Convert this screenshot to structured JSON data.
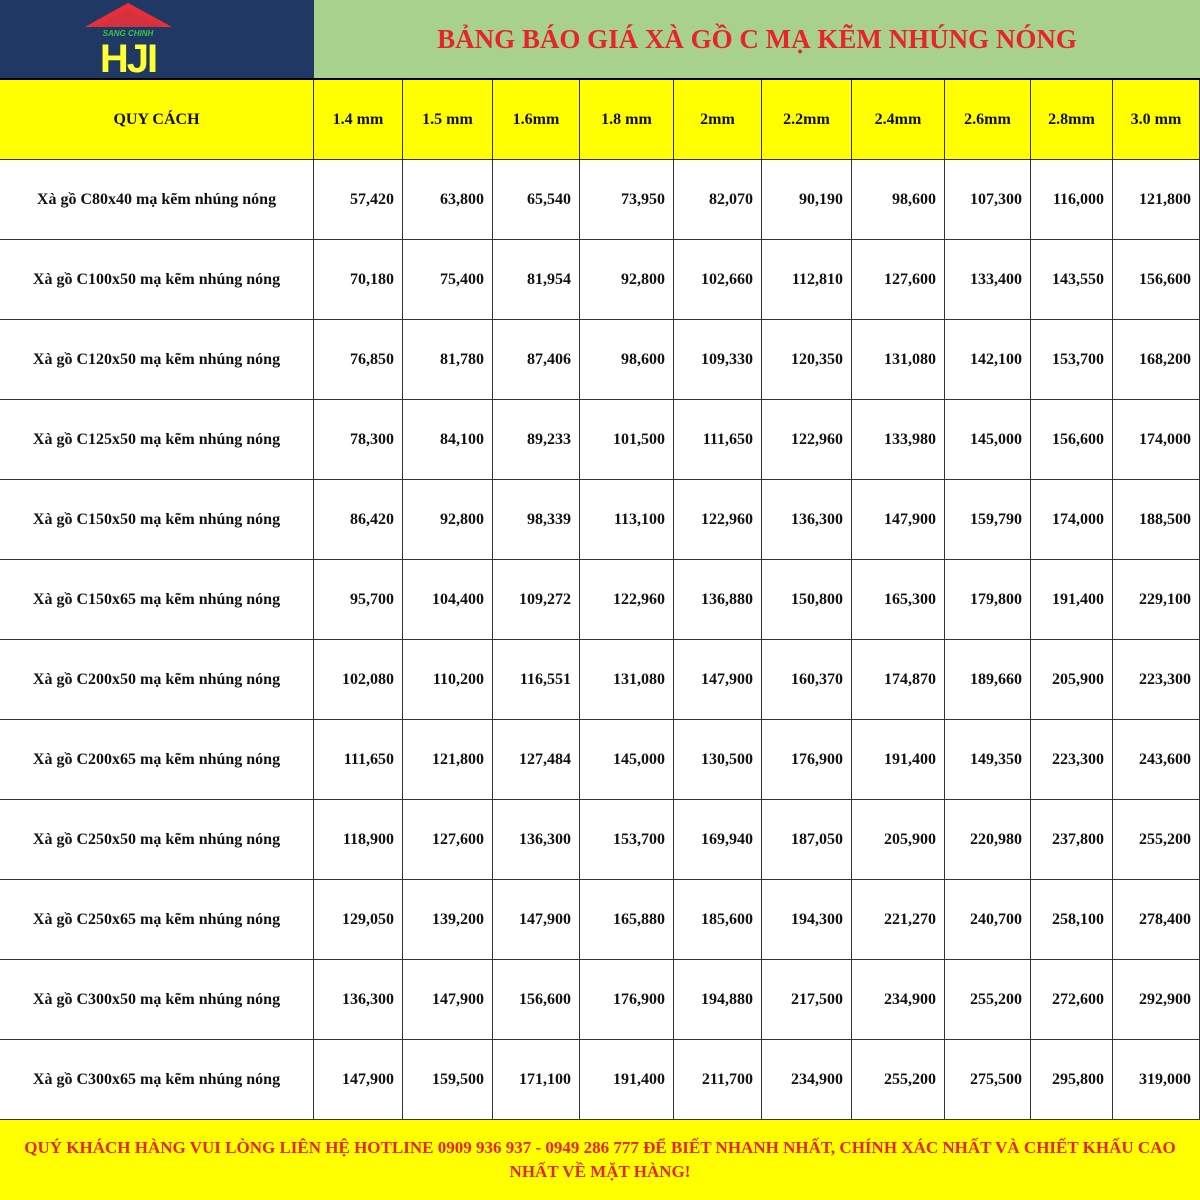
{
  "logo": {
    "text": "SANG CHINH",
    "mark": "HJI",
    "colors": {
      "roof": "#e8303a",
      "letters": "#ffff33",
      "tagline": "#3cc24a",
      "bg": "#1f3864"
    }
  },
  "title": "BẢNG BÁO GIÁ XÀ GỒ C MẠ KẼM NHÚNG NÓNG",
  "table": {
    "headers": [
      "QUY CÁCH",
      "1.4 mm",
      "1.5 mm",
      "1.6mm",
      "1.8 mm",
      "2mm",
      "2.2mm",
      "2.4mm",
      "2.6mm",
      "2.8mm",
      "3.0 mm"
    ],
    "rows": [
      {
        "name": "Xà gồ C80x40 mạ kẽm nhúng nóng",
        "prices": [
          "57,420",
          "63,800",
          "65,540",
          "73,950",
          "82,070",
          "90,190",
          "98,600",
          "107,300",
          "116,000",
          "121,800"
        ]
      },
      {
        "name": "Xà gồ C100x50 mạ kẽm nhúng nóng",
        "prices": [
          "70,180",
          "75,400",
          "81,954",
          "92,800",
          "102,660",
          "112,810",
          "127,600",
          "133,400",
          "143,550",
          "156,600"
        ]
      },
      {
        "name": "Xà gồ C120x50 mạ kẽm nhúng nóng",
        "prices": [
          "76,850",
          "81,780",
          "87,406",
          "98,600",
          "109,330",
          "120,350",
          "131,080",
          "142,100",
          "153,700",
          "168,200"
        ]
      },
      {
        "name": "Xà gồ C125x50 mạ kẽm nhúng nóng",
        "prices": [
          "78,300",
          "84,100",
          "89,233",
          "101,500",
          "111,650",
          "122,960",
          "133,980",
          "145,000",
          "156,600",
          "174,000"
        ]
      },
      {
        "name": "Xà gồ C150x50 mạ kẽm nhúng nóng",
        "prices": [
          "86,420",
          "92,800",
          "98,339",
          "113,100",
          "122,960",
          "136,300",
          "147,900",
          "159,790",
          "174,000",
          "188,500"
        ]
      },
      {
        "name": "Xà gồ C150x65 mạ kẽm nhúng nóng",
        "prices": [
          "95,700",
          "104,400",
          "109,272",
          "122,960",
          "136,880",
          "150,800",
          "165,300",
          "179,800",
          "191,400",
          "229,100"
        ]
      },
      {
        "name": "Xà gồ C200x50 mạ kẽm nhúng nóng",
        "prices": [
          "102,080",
          "110,200",
          "116,551",
          "131,080",
          "147,900",
          "160,370",
          "174,870",
          "189,660",
          "205,900",
          "223,300"
        ]
      },
      {
        "name": "Xà gồ C200x65 mạ kẽm nhúng nóng",
        "prices": [
          "111,650",
          "121,800",
          "127,484",
          "145,000",
          "130,500",
          "176,900",
          "191,400",
          "149,350",
          "223,300",
          "243,600"
        ]
      },
      {
        "name": "Xà gồ C250x50 mạ kẽm nhúng nóng",
        "prices": [
          "118,900",
          "127,600",
          "136,300",
          "153,700",
          "169,940",
          "187,050",
          "205,900",
          "220,980",
          "237,800",
          "255,200"
        ]
      },
      {
        "name": "Xà gồ C250x65 mạ kẽm nhúng nóng",
        "prices": [
          "129,050",
          "139,200",
          "147,900",
          "165,880",
          "185,600",
          "194,300",
          "221,270",
          "240,700",
          "258,100",
          "278,400"
        ]
      },
      {
        "name": "Xà gồ C300x50 mạ kẽm nhúng nóng",
        "prices": [
          "136,300",
          "147,900",
          "156,600",
          "176,900",
          "194,880",
          "217,500",
          "234,900",
          "255,200",
          "272,600",
          "292,900"
        ]
      },
      {
        "name": "Xà gồ C300x65 mạ kẽm nhúng nóng",
        "prices": [
          "147,900",
          "159,500",
          "171,100",
          "191,400",
          "211,700",
          "234,900",
          "255,200",
          "275,500",
          "295,800",
          "319,000"
        ]
      }
    ]
  },
  "footer": "QUÝ KHÁCH HÀNG VUI LÒNG LIÊN HỆ HOTLINE 0909 936 937 - 0949 286 777 ĐỂ BIẾT NHANH NHẤT, CHÍNH XÁC NHẤT VÀ CHIẾT KHẤU CAO NHẤT VỀ MẶT HÀNG!"
}
